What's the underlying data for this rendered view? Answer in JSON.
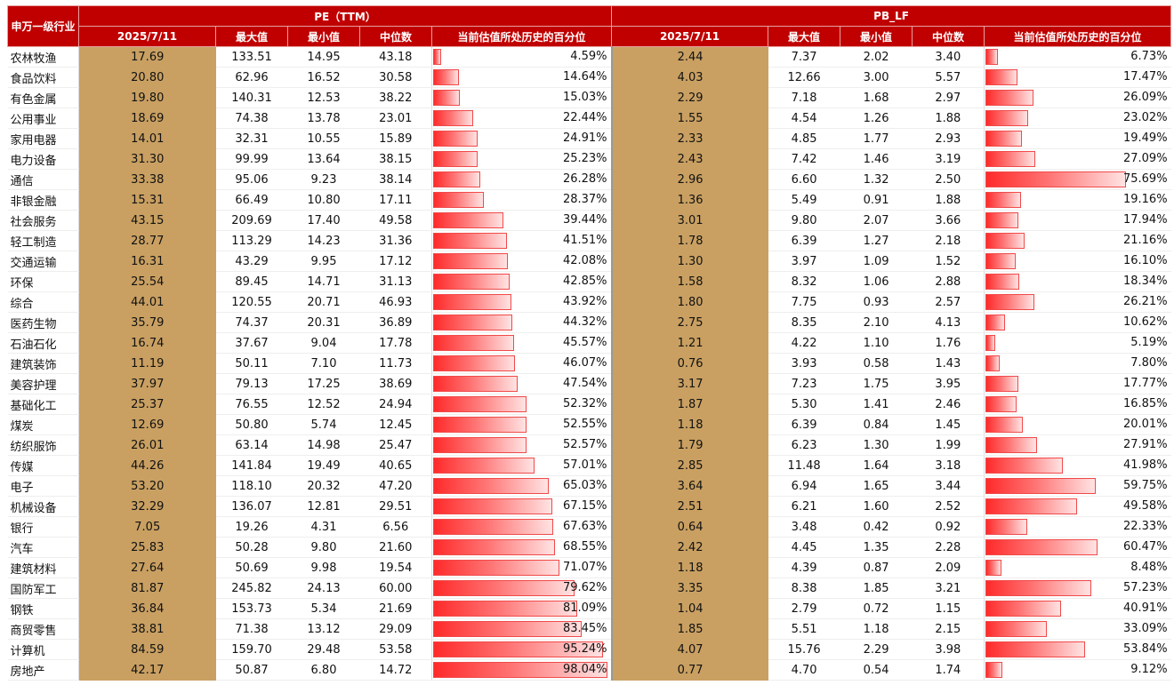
{
  "header": {
    "industry_label": "申万一级行业",
    "pe_group": "PE（TTM）",
    "pb_group": "PB_LF",
    "columns": [
      "2025/7/11",
      "最大值",
      "最小值",
      "中位数",
      "当前估值所处历史的百分位"
    ]
  },
  "colors": {
    "header_bg": "#c00000",
    "current_col_bg": "#c9a062",
    "bar": "#ff3b3b"
  },
  "rows": [
    {
      "industry": "农林牧渔",
      "pe": {
        "cur": "17.69",
        "max": "133.51",
        "min": "14.95",
        "med": "43.18",
        "pct": "4.59%",
        "p": 4.59
      },
      "pb": {
        "cur": "2.44",
        "max": "7.37",
        "min": "2.02",
        "med": "3.40",
        "pct": "6.73%",
        "p": 6.73
      }
    },
    {
      "industry": "食品饮料",
      "pe": {
        "cur": "20.80",
        "max": "62.96",
        "min": "16.52",
        "med": "30.58",
        "pct": "14.64%",
        "p": 14.64
      },
      "pb": {
        "cur": "4.03",
        "max": "12.66",
        "min": "3.00",
        "med": "5.57",
        "pct": "17.47%",
        "p": 17.47
      }
    },
    {
      "industry": "有色金属",
      "pe": {
        "cur": "19.80",
        "max": "140.31",
        "min": "12.53",
        "med": "38.22",
        "pct": "15.03%",
        "p": 15.03
      },
      "pb": {
        "cur": "2.29",
        "max": "7.18",
        "min": "1.68",
        "med": "2.97",
        "pct": "26.09%",
        "p": 26.09
      }
    },
    {
      "industry": "公用事业",
      "pe": {
        "cur": "18.69",
        "max": "74.38",
        "min": "13.78",
        "med": "23.01",
        "pct": "22.44%",
        "p": 22.44
      },
      "pb": {
        "cur": "1.55",
        "max": "4.54",
        "min": "1.26",
        "med": "1.88",
        "pct": "23.02%",
        "p": 23.02
      }
    },
    {
      "industry": "家用电器",
      "pe": {
        "cur": "14.01",
        "max": "32.31",
        "min": "10.55",
        "med": "15.89",
        "pct": "24.91%",
        "p": 24.91
      },
      "pb": {
        "cur": "2.33",
        "max": "4.85",
        "min": "1.77",
        "med": "2.93",
        "pct": "19.49%",
        "p": 19.49
      }
    },
    {
      "industry": "电力设备",
      "pe": {
        "cur": "31.30",
        "max": "99.99",
        "min": "13.64",
        "med": "38.15",
        "pct": "25.23%",
        "p": 25.23
      },
      "pb": {
        "cur": "2.43",
        "max": "7.42",
        "min": "1.46",
        "med": "3.19",
        "pct": "27.09%",
        "p": 27.09
      }
    },
    {
      "industry": "通信",
      "pe": {
        "cur": "33.38",
        "max": "95.06",
        "min": "9.23",
        "med": "38.14",
        "pct": "26.28%",
        "p": 26.28
      },
      "pb": {
        "cur": "2.96",
        "max": "6.60",
        "min": "1.32",
        "med": "2.50",
        "pct": "75.69%",
        "p": 75.69
      }
    },
    {
      "industry": "非银金融",
      "pe": {
        "cur": "15.31",
        "max": "66.49",
        "min": "10.80",
        "med": "17.11",
        "pct": "28.37%",
        "p": 28.37
      },
      "pb": {
        "cur": "1.36",
        "max": "5.49",
        "min": "0.91",
        "med": "1.88",
        "pct": "19.16%",
        "p": 19.16
      }
    },
    {
      "industry": "社会服务",
      "pe": {
        "cur": "43.15",
        "max": "209.69",
        "min": "17.40",
        "med": "49.58",
        "pct": "39.44%",
        "p": 39.44
      },
      "pb": {
        "cur": "3.01",
        "max": "9.80",
        "min": "2.07",
        "med": "3.66",
        "pct": "17.94%",
        "p": 17.94
      }
    },
    {
      "industry": "轻工制造",
      "pe": {
        "cur": "28.77",
        "max": "113.29",
        "min": "14.23",
        "med": "31.36",
        "pct": "41.51%",
        "p": 41.51
      },
      "pb": {
        "cur": "1.78",
        "max": "6.39",
        "min": "1.27",
        "med": "2.18",
        "pct": "21.16%",
        "p": 21.16
      }
    },
    {
      "industry": "交通运输",
      "pe": {
        "cur": "16.31",
        "max": "43.29",
        "min": "9.95",
        "med": "17.12",
        "pct": "42.08%",
        "p": 42.08
      },
      "pb": {
        "cur": "1.30",
        "max": "3.97",
        "min": "1.09",
        "med": "1.52",
        "pct": "16.10%",
        "p": 16.1
      }
    },
    {
      "industry": "环保",
      "pe": {
        "cur": "25.54",
        "max": "89.45",
        "min": "14.71",
        "med": "31.13",
        "pct": "42.85%",
        "p": 42.85
      },
      "pb": {
        "cur": "1.58",
        "max": "8.32",
        "min": "1.06",
        "med": "2.88",
        "pct": "18.34%",
        "p": 18.34
      }
    },
    {
      "industry": "综合",
      "pe": {
        "cur": "44.01",
        "max": "120.55",
        "min": "20.71",
        "med": "46.93",
        "pct": "43.92%",
        "p": 43.92
      },
      "pb": {
        "cur": "1.80",
        "max": "7.75",
        "min": "0.93",
        "med": "2.57",
        "pct": "26.21%",
        "p": 26.21
      }
    },
    {
      "industry": "医药生物",
      "pe": {
        "cur": "35.79",
        "max": "74.37",
        "min": "20.31",
        "med": "36.89",
        "pct": "44.32%",
        "p": 44.32
      },
      "pb": {
        "cur": "2.75",
        "max": "8.35",
        "min": "2.10",
        "med": "4.13",
        "pct": "10.62%",
        "p": 10.62
      }
    },
    {
      "industry": "石油石化",
      "pe": {
        "cur": "16.74",
        "max": "37.67",
        "min": "9.04",
        "med": "17.78",
        "pct": "45.57%",
        "p": 45.57
      },
      "pb": {
        "cur": "1.21",
        "max": "4.22",
        "min": "1.10",
        "med": "1.76",
        "pct": "5.19%",
        "p": 5.19
      }
    },
    {
      "industry": "建筑装饰",
      "pe": {
        "cur": "11.19",
        "max": "50.11",
        "min": "7.10",
        "med": "11.73",
        "pct": "46.07%",
        "p": 46.07
      },
      "pb": {
        "cur": "0.76",
        "max": "3.93",
        "min": "0.58",
        "med": "1.43",
        "pct": "7.80%",
        "p": 7.8
      }
    },
    {
      "industry": "美容护理",
      "pe": {
        "cur": "37.97",
        "max": "79.13",
        "min": "17.25",
        "med": "38.69",
        "pct": "47.54%",
        "p": 47.54
      },
      "pb": {
        "cur": "3.17",
        "max": "7.23",
        "min": "1.75",
        "med": "3.95",
        "pct": "17.77%",
        "p": 17.77
      }
    },
    {
      "industry": "基础化工",
      "pe": {
        "cur": "25.37",
        "max": "76.55",
        "min": "12.52",
        "med": "24.94",
        "pct": "52.32%",
        "p": 52.32
      },
      "pb": {
        "cur": "1.87",
        "max": "5.30",
        "min": "1.41",
        "med": "2.46",
        "pct": "16.85%",
        "p": 16.85
      }
    },
    {
      "industry": "煤炭",
      "pe": {
        "cur": "12.69",
        "max": "50.80",
        "min": "5.74",
        "med": "12.45",
        "pct": "52.55%",
        "p": 52.55
      },
      "pb": {
        "cur": "1.18",
        "max": "6.39",
        "min": "0.84",
        "med": "1.45",
        "pct": "20.01%",
        "p": 20.01
      }
    },
    {
      "industry": "纺织服饰",
      "pe": {
        "cur": "26.01",
        "max": "63.14",
        "min": "14.98",
        "med": "25.47",
        "pct": "52.57%",
        "p": 52.57
      },
      "pb": {
        "cur": "1.79",
        "max": "6.23",
        "min": "1.30",
        "med": "1.99",
        "pct": "27.91%",
        "p": 27.91
      }
    },
    {
      "industry": "传媒",
      "pe": {
        "cur": "44.26",
        "max": "141.84",
        "min": "19.49",
        "med": "40.65",
        "pct": "57.01%",
        "p": 57.01
      },
      "pb": {
        "cur": "2.85",
        "max": "11.48",
        "min": "1.64",
        "med": "3.18",
        "pct": "41.98%",
        "p": 41.98
      }
    },
    {
      "industry": "电子",
      "pe": {
        "cur": "53.20",
        "max": "118.10",
        "min": "20.32",
        "med": "47.20",
        "pct": "65.03%",
        "p": 65.03
      },
      "pb": {
        "cur": "3.64",
        "max": "6.94",
        "min": "1.65",
        "med": "3.44",
        "pct": "59.75%",
        "p": 59.75
      }
    },
    {
      "industry": "机械设备",
      "pe": {
        "cur": "32.29",
        "max": "136.07",
        "min": "12.81",
        "med": "29.51",
        "pct": "67.15%",
        "p": 67.15
      },
      "pb": {
        "cur": "2.51",
        "max": "6.21",
        "min": "1.60",
        "med": "2.52",
        "pct": "49.58%",
        "p": 49.58
      }
    },
    {
      "industry": "银行",
      "pe": {
        "cur": "7.05",
        "max": "19.26",
        "min": "4.31",
        "med": "6.56",
        "pct": "67.63%",
        "p": 67.63
      },
      "pb": {
        "cur": "0.64",
        "max": "3.48",
        "min": "0.42",
        "med": "0.92",
        "pct": "22.33%",
        "p": 22.33
      }
    },
    {
      "industry": "汽车",
      "pe": {
        "cur": "25.83",
        "max": "50.28",
        "min": "9.80",
        "med": "21.60",
        "pct": "68.55%",
        "p": 68.55
      },
      "pb": {
        "cur": "2.42",
        "max": "4.45",
        "min": "1.35",
        "med": "2.28",
        "pct": "60.47%",
        "p": 60.47
      }
    },
    {
      "industry": "建筑材料",
      "pe": {
        "cur": "27.64",
        "max": "50.69",
        "min": "9.98",
        "med": "19.54",
        "pct": "71.07%",
        "p": 71.07
      },
      "pb": {
        "cur": "1.18",
        "max": "4.39",
        "min": "0.87",
        "med": "2.09",
        "pct": "8.48%",
        "p": 8.48
      }
    },
    {
      "industry": "国防军工",
      "pe": {
        "cur": "81.87",
        "max": "245.82",
        "min": "24.13",
        "med": "60.00",
        "pct": "79.62%",
        "p": 79.62
      },
      "pb": {
        "cur": "3.35",
        "max": "8.38",
        "min": "1.85",
        "med": "3.21",
        "pct": "57.23%",
        "p": 57.23
      }
    },
    {
      "industry": "钢铁",
      "pe": {
        "cur": "36.84",
        "max": "153.73",
        "min": "5.34",
        "med": "21.69",
        "pct": "81.09%",
        "p": 81.09
      },
      "pb": {
        "cur": "1.04",
        "max": "2.79",
        "min": "0.72",
        "med": "1.15",
        "pct": "40.91%",
        "p": 40.91
      }
    },
    {
      "industry": "商贸零售",
      "pe": {
        "cur": "38.81",
        "max": "71.38",
        "min": "13.12",
        "med": "29.09",
        "pct": "83.45%",
        "p": 83.45
      },
      "pb": {
        "cur": "1.85",
        "max": "5.51",
        "min": "1.18",
        "med": "2.15",
        "pct": "33.09%",
        "p": 33.09
      }
    },
    {
      "industry": "计算机",
      "pe": {
        "cur": "84.59",
        "max": "159.70",
        "min": "29.48",
        "med": "53.58",
        "pct": "95.24%",
        "p": 95.24
      },
      "pb": {
        "cur": "4.07",
        "max": "15.76",
        "min": "2.29",
        "med": "3.98",
        "pct": "53.84%",
        "p": 53.84
      }
    },
    {
      "industry": "房地产",
      "pe": {
        "cur": "42.17",
        "max": "50.87",
        "min": "6.80",
        "med": "14.72",
        "pct": "98.04%",
        "p": 98.04
      },
      "pb": {
        "cur": "0.77",
        "max": "4.70",
        "min": "0.54",
        "med": "1.74",
        "pct": "9.12%",
        "p": 9.12
      }
    }
  ]
}
